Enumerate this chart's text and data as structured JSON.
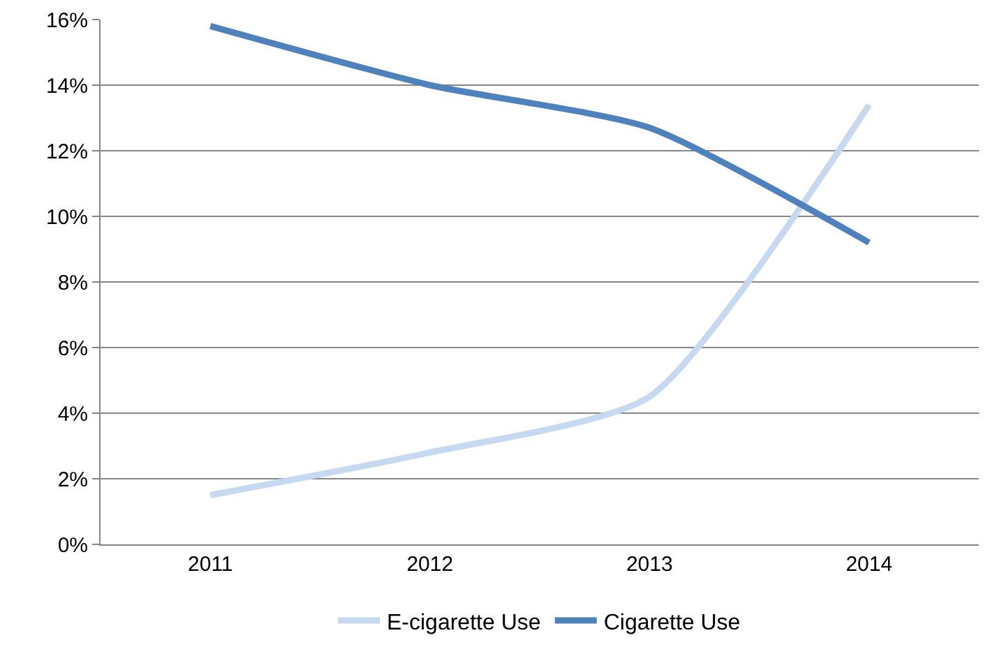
{
  "chart_data": {
    "type": "line",
    "categories": [
      "2011",
      "2012",
      "2013",
      "2014"
    ],
    "series": [
      {
        "name": "E-cigarette Use",
        "color": "#c6d9f1",
        "values": [
          1.5,
          2.8,
          4.5,
          13.4
        ]
      },
      {
        "name": "Cigarette Use",
        "color": "#4f81bd",
        "values": [
          15.8,
          14.0,
          12.7,
          9.2
        ]
      }
    ],
    "ylim": [
      0,
      16
    ],
    "yticks": [
      {
        "value": 0,
        "label": "0%"
      },
      {
        "value": 2,
        "label": "2%"
      },
      {
        "value": 4,
        "label": "4%"
      },
      {
        "value": 6,
        "label": "6%"
      },
      {
        "value": 8,
        "label": "8%"
      },
      {
        "value": 10,
        "label": "10%"
      },
      {
        "value": 12,
        "label": "12%"
      },
      {
        "value": 14,
        "label": "14%"
      },
      {
        "value": 16,
        "label": "16%"
      }
    ],
    "grid": "y",
    "legend": "bottom",
    "marker": "none",
    "line_style": "solid"
  }
}
